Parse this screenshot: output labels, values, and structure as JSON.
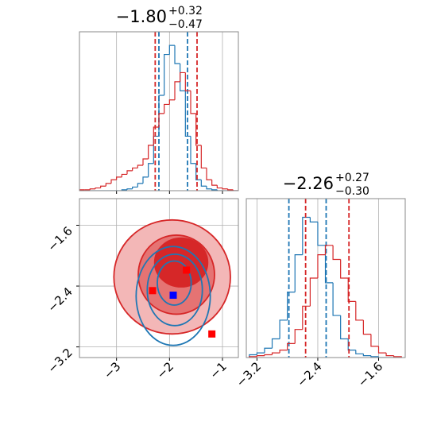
{
  "chart_data": [
    {
      "type": "histogram",
      "title": "−1.80",
      "title_upper": "+0.32",
      "title_lower": "−0.47",
      "bins": [
        -3.7,
        -3.6,
        -3.5,
        -3.4,
        -3.3,
        -3.2,
        -3.1,
        -3.0,
        -2.9,
        -2.8,
        -2.7,
        -2.6,
        -2.5,
        -2.4,
        -2.3,
        -2.2,
        -2.1,
        -2.0,
        -1.9,
        -1.8,
        -1.7,
        -1.6,
        -1.5,
        -1.4,
        -1.3,
        -1.2,
        -1.1,
        -1.0,
        -0.9,
        -0.8,
        -0.7
      ],
      "series": [
        {
          "color": "#1f77b4",
          "values": [
            0,
            0,
            0,
            0,
            0,
            0,
            0,
            0,
            1,
            2,
            4,
            8,
            15,
            30,
            60,
            105,
            150,
            160,
            140,
            110,
            60,
            30,
            12,
            5,
            2,
            1,
            0,
            0,
            0,
            0
          ],
          "quantiles": [
            -2.2,
            -1.66
          ]
        },
        {
          "color": "#d62728",
          "values": [
            1,
            1,
            2,
            3,
            5,
            8,
            12,
            15,
            18,
            22,
            25,
            28,
            35,
            50,
            70,
            85,
            95,
            100,
            120,
            130,
            110,
            85,
            50,
            25,
            12,
            6,
            3,
            2,
            1,
            0
          ],
          "quantiles": [
            -2.27,
            -1.48
          ]
        }
      ],
      "xlim": [
        -3.7,
        -0.7
      ],
      "ylim": [
        0,
        175
      ],
      "xticks": [
        -3,
        -2,
        -1
      ],
      "xtick_labels": false,
      "grid": true
    },
    {
      "type": "contour",
      "contours": [
        {
          "color": "#d62728",
          "filled": true,
          "fill_colors": [
            "#f3b7b7",
            "#e57373",
            "#d62728"
          ],
          "levels": [
            {
              "cx": -1.95,
              "cy": -2.28,
              "rx": 1.1,
              "ry": 0.75
            },
            {
              "cx": -1.87,
              "cy": -2.25,
              "rx": 0.72,
              "ry": 0.52
            },
            {
              "cx": -1.78,
              "cy": -2.09,
              "rx": 0.5,
              "ry": 0.32
            }
          ]
        },
        {
          "color": "#1f77b4",
          "filled": false,
          "levels": [
            {
              "cx": -1.93,
              "cy": -2.53,
              "rx": 0.7,
              "ry": 0.65
            },
            {
              "cx": -1.9,
              "cy": -2.45,
              "rx": 0.52,
              "ry": 0.47
            },
            {
              "cx": -1.91,
              "cy": -2.36,
              "rx": 0.32,
              "ry": 0.29
            }
          ]
        }
      ],
      "points": [
        {
          "x": -2.32,
          "y": -2.46,
          "color": "#ff0000"
        },
        {
          "x": -1.68,
          "y": -2.19,
          "color": "#ff0000"
        },
        {
          "x": -1.2,
          "y": -3.03,
          "color": "#ff0000"
        },
        {
          "x": -1.93,
          "y": -2.52,
          "color": "#0000ff"
        }
      ],
      "xlim": [
        -3.7,
        -0.7
      ],
      "ylim": [
        -3.34,
        -1.25
      ],
      "xticks": [
        {
          "value": -3,
          "label": "−3"
        },
        {
          "value": -2,
          "label": "−2"
        },
        {
          "value": -1,
          "label": "−1"
        }
      ],
      "yticks": [
        {
          "value": -1.6,
          "label": "−1.6"
        },
        {
          "value": -2.4,
          "label": "−2.4"
        },
        {
          "value": -3.2,
          "label": "−3.2"
        }
      ],
      "grid": true
    },
    {
      "type": "histogram",
      "title": "−2.26",
      "title_upper": "+0.27",
      "title_lower": "−0.30",
      "bins": [
        -3.3,
        -3.2,
        -3.1,
        -3.0,
        -2.9,
        -2.8,
        -2.7,
        -2.6,
        -2.5,
        -2.4,
        -2.3,
        -2.2,
        -2.1,
        -2.0,
        -1.9,
        -1.8,
        -1.7,
        -1.6,
        -1.5,
        -1.4,
        -1.3
      ],
      "series": [
        {
          "color": "#1f77b4",
          "values": [
            3,
            5,
            10,
            20,
            40,
            70,
            110,
            150,
            145,
            120,
            80,
            45,
            20,
            8,
            4,
            2,
            1,
            0,
            0,
            0
          ],
          "quantiles": [
            -2.78,
            -2.29
          ]
        },
        {
          "color": "#d62728",
          "values": [
            1,
            2,
            3,
            5,
            8,
            15,
            30,
            55,
            85,
            110,
            120,
            105,
            85,
            60,
            40,
            25,
            12,
            5,
            2,
            1
          ],
          "quantiles": [
            -2.56,
            -1.99
          ]
        }
      ],
      "xlim": [
        -3.34,
        -1.25
      ],
      "ylim": [
        0,
        170
      ],
      "xticks": [
        {
          "value": -3.2,
          "label": "−3.2"
        },
        {
          "value": -2.4,
          "label": "−2.4"
        },
        {
          "value": -1.6,
          "label": "−1.6"
        }
      ],
      "grid": true
    }
  ]
}
